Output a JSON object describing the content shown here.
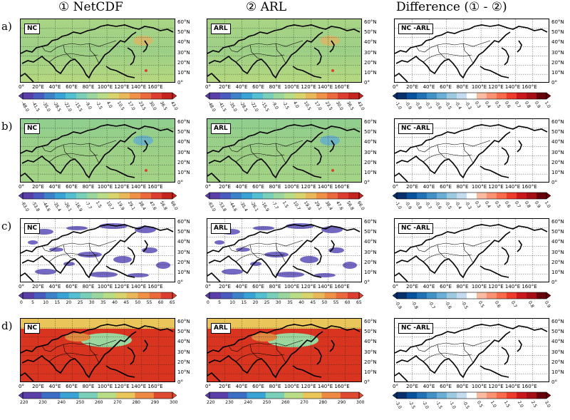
{
  "columns": [
    "① NetCDF",
    "② ARL",
    "Difference (① - ②)"
  ],
  "rows": [
    "a)",
    "b)",
    "c)",
    "d)"
  ],
  "tags": {
    "netcdf": "NC",
    "arl": "ARL",
    "diff": "NC -ARL"
  },
  "lon_labels": [
    "0°",
    "20°E",
    "40°E",
    "60°E",
    "80°E",
    "100°E",
    "120°E",
    "140°E",
    "160°E"
  ],
  "lat_labels": [
    "60°N",
    "50°N",
    "40°N",
    "30°N",
    "20°N",
    "10°N",
    "0°"
  ],
  "colorbars": {
    "a": {
      "field": [
        "-48.0",
        "-41.5",
        "-35.0",
        "-28.5",
        "-22.0",
        "-15.5",
        "-9.0",
        "-2.5",
        "4.0",
        "10.5",
        "17.0",
        "23.5",
        "30.0",
        "36.5",
        "43.0"
      ],
      "diff": [
        "-1.0",
        "-0.9",
        "-0.8",
        "-0.7",
        "-0.6",
        "-0.5",
        "-0.4",
        "-0.3",
        "0.3",
        "0.4",
        "0.5",
        "0.6",
        "0.7",
        "0.8",
        "0.9",
        "1.0"
      ]
    },
    "b": {
      "field": [
        "-63.0",
        "-53.8",
        "-44.6",
        "-35.4",
        "-26.1",
        "-16.9",
        "-7.7",
        "1.5",
        "10.7",
        "19.9",
        "29.1",
        "38.4",
        "47.6",
        "56.8",
        "66.0"
      ],
      "diff": [
        "-1.0",
        "-0.9",
        "-0.8",
        "-0.7",
        "-0.6",
        "-0.5",
        "-0.4",
        "-0.3",
        "0.3",
        "0.4",
        "0.5",
        "0.6",
        "0.7",
        "0.8",
        "0.9",
        "1.0"
      ]
    },
    "c": {
      "field": [
        "0",
        "5",
        "10",
        "15",
        "20",
        "25",
        "30",
        "35",
        "40",
        "45",
        "50",
        "55",
        "60",
        "65"
      ],
      "diff": [
        "-0.9",
        "-0.8",
        "-0.7",
        "-0.6",
        "-0.5",
        "0.5",
        "0.6",
        "0.7",
        "0.8",
        "0.9"
      ]
    },
    "d": {
      "field": [
        "220",
        "230",
        "240",
        "250",
        "260",
        "270",
        "280",
        "290",
        "300"
      ],
      "diff": [
        "-3.0",
        "-2.5",
        "-2.0",
        "-1.5",
        "-1.0",
        "-0.5",
        "0.5",
        "1.0",
        "1.5",
        "2.0",
        "2.5",
        "3.0"
      ]
    }
  },
  "colors": {
    "field_ab": [
      "#5b3fa8",
      "#4a5bc0",
      "#3b82c9",
      "#3aa3d6",
      "#55bfd2",
      "#79cfb8",
      "#9bd69e",
      "#b9dc86",
      "#d7d46e",
      "#e9b85a",
      "#ef9248",
      "#ea6a3d",
      "#dc3f31",
      "#c52420"
    ],
    "field_c": [
      "#5b3fa8",
      "#4a5bc0",
      "#3b82c9",
      "#3aa3d6",
      "#55bfd2",
      "#79cfb8",
      "#9bd69e",
      "#b9dc86",
      "#d7d46e",
      "#e9b85a",
      "#ef9248",
      "#ea6a3d",
      "#dc3f31"
    ],
    "field_d": [
      "#5b3fa8",
      "#3b6ec4",
      "#3aa3d6",
      "#79cfb8",
      "#b9dc86",
      "#e9c55a",
      "#ef8a44",
      "#e04a30"
    ],
    "diff": [
      "#08306b",
      "#08519c",
      "#2171b5",
      "#4292c6",
      "#6baed6",
      "#9ecae1",
      "#c6dbef",
      "#ffffff",
      "#fcbba1",
      "#fc9272",
      "#fb6a4a",
      "#ef3b2c",
      "#cb181d",
      "#a50f15",
      "#67000d"
    ]
  }
}
